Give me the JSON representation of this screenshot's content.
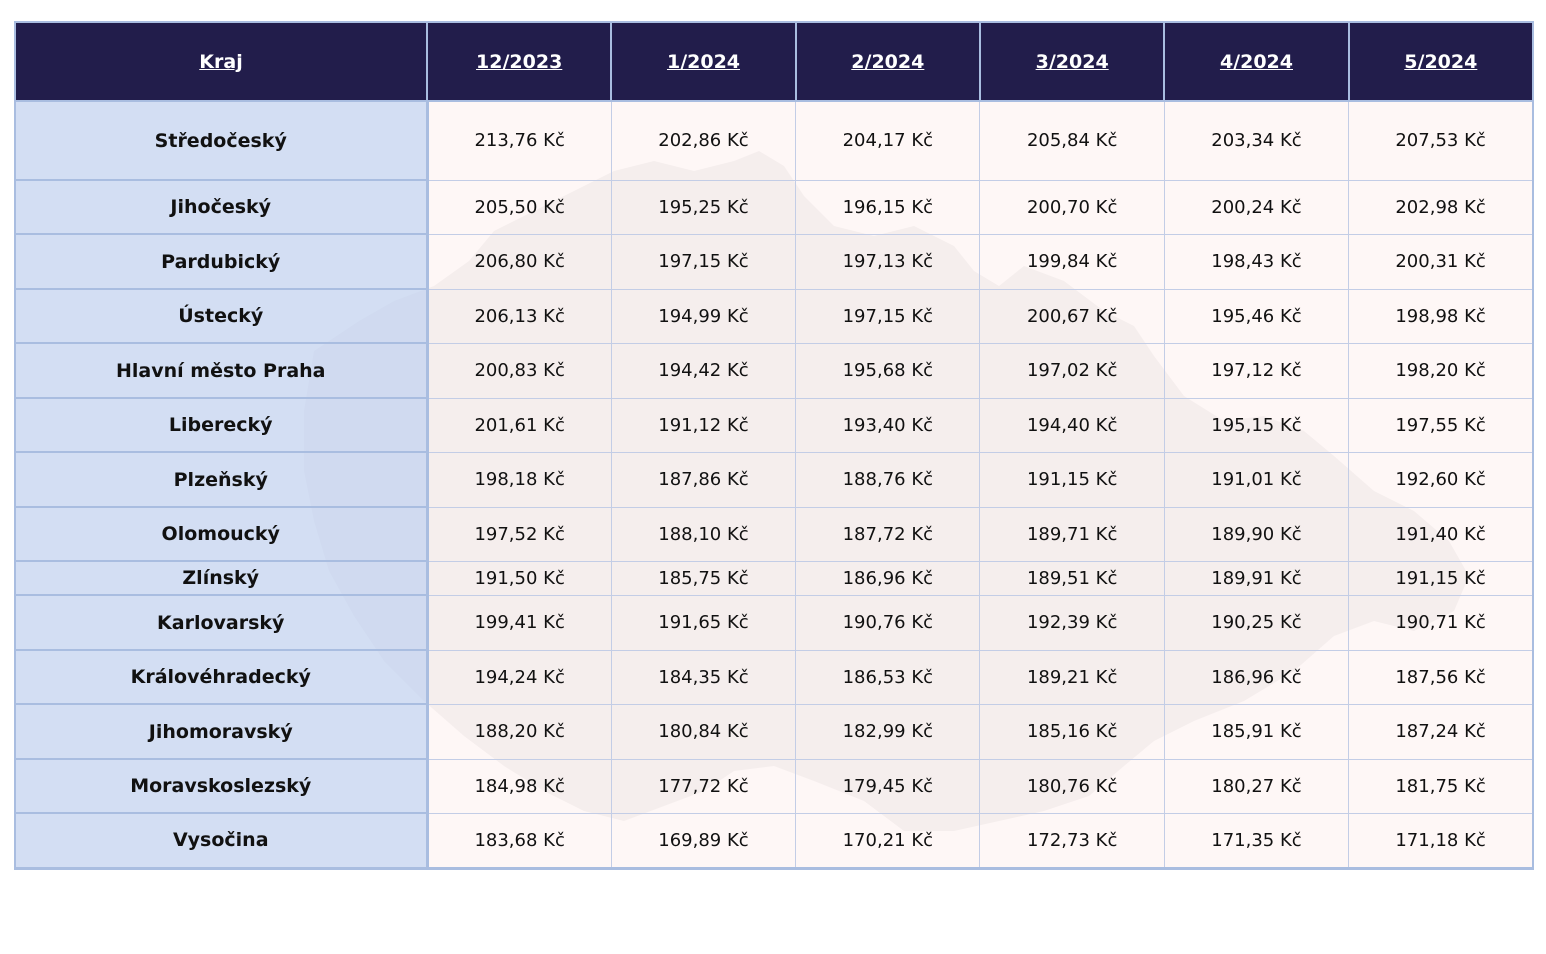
{
  "table": {
    "columns": [
      "Kraj",
      "12/2023",
      "1/2024",
      "2/2024",
      "3/2024",
      "4/2024",
      "5/2024"
    ],
    "rows": [
      {
        "kraj": "Středočeský",
        "values": [
          "213,76 Kč",
          "202,86 Kč",
          "204,17 Kč",
          "205,84 Kč",
          "203,34 Kč",
          "207,53 Kč"
        ]
      },
      {
        "kraj": "Jihočeský",
        "values": [
          "205,50 Kč",
          "195,25 Kč",
          "196,15 Kč",
          "200,70 Kč",
          "200,24 Kč",
          "202,98 Kč"
        ]
      },
      {
        "kraj": "Pardubický",
        "values": [
          "206,80 Kč",
          "197,15 Kč",
          "197,13 Kč",
          "199,84 Kč",
          "198,43 Kč",
          "200,31 Kč"
        ]
      },
      {
        "kraj": "Ústecký",
        "values": [
          "206,13 Kč",
          "194,99 Kč",
          "197,15 Kč",
          "200,67 Kč",
          "195,46 Kč",
          "198,98 Kč"
        ]
      },
      {
        "kraj": "Hlavní město Praha",
        "values": [
          "200,83 Kč",
          "194,42 Kč",
          "195,68 Kč",
          "197,02 Kč",
          "197,12 Kč",
          "198,20 Kč"
        ]
      },
      {
        "kraj": "Liberecký",
        "values": [
          "201,61 Kč",
          "191,12 Kč",
          "193,40 Kč",
          "194,40 Kč",
          "195,15 Kč",
          "197,55 Kč"
        ]
      },
      {
        "kraj": "Plzeňský",
        "values": [
          "198,18 Kč",
          "187,86 Kč",
          "188,76 Kč",
          "191,15 Kč",
          "191,01 Kč",
          "192,60 Kč"
        ]
      },
      {
        "kraj": "Olomoucký",
        "values": [
          "197,52 Kč",
          "188,10 Kč",
          "187,72 Kč",
          "189,71 Kč",
          "189,90 Kč",
          "191,40 Kč"
        ]
      },
      {
        "kraj": "Zlínský",
        "values": [
          "191,50 Kč",
          "185,75 Kč",
          "186,96 Kč",
          "189,51 Kč",
          "189,91 Kč",
          "191,15 Kč"
        ]
      },
      {
        "kraj": "Karlovarský",
        "values": [
          "199,41 Kč",
          "191,65 Kč",
          "190,76 Kč",
          "192,39 Kč",
          "190,25 Kč",
          "190,71 Kč"
        ]
      },
      {
        "kraj": "Královéhradecký",
        "values": [
          "194,24 Kč",
          "184,35 Kč",
          "186,53 Kč",
          "189,21 Kč",
          "186,96 Kč",
          "187,56 Kč"
        ]
      },
      {
        "kraj": "Jihomoravský",
        "values": [
          "188,20 Kč",
          "180,84 Kč",
          "182,99 Kč",
          "185,16 Kč",
          "185,91 Kč",
          "187,24 Kč"
        ]
      },
      {
        "kraj": "Moravskoslezský",
        "values": [
          "184,98 Kč",
          "177,72 Kč",
          "179,45 Kč",
          "180,76 Kč",
          "180,27 Kč",
          "181,75 Kč"
        ]
      },
      {
        "kraj": "Vysočina",
        "values": [
          "183,68 Kč",
          "169,89 Kč",
          "170,21 Kč",
          "172,73 Kč",
          "171,35 Kč",
          "171,18 Kč"
        ]
      }
    ]
  },
  "colors": {
    "header_bg": "#221d4b",
    "header_text": "#ffffff",
    "name_col_bg": "#c9d7f0",
    "cell_bg": "#fdf0ee",
    "border": "#a9bde0",
    "map_watermark": "#e4e1e3"
  }
}
